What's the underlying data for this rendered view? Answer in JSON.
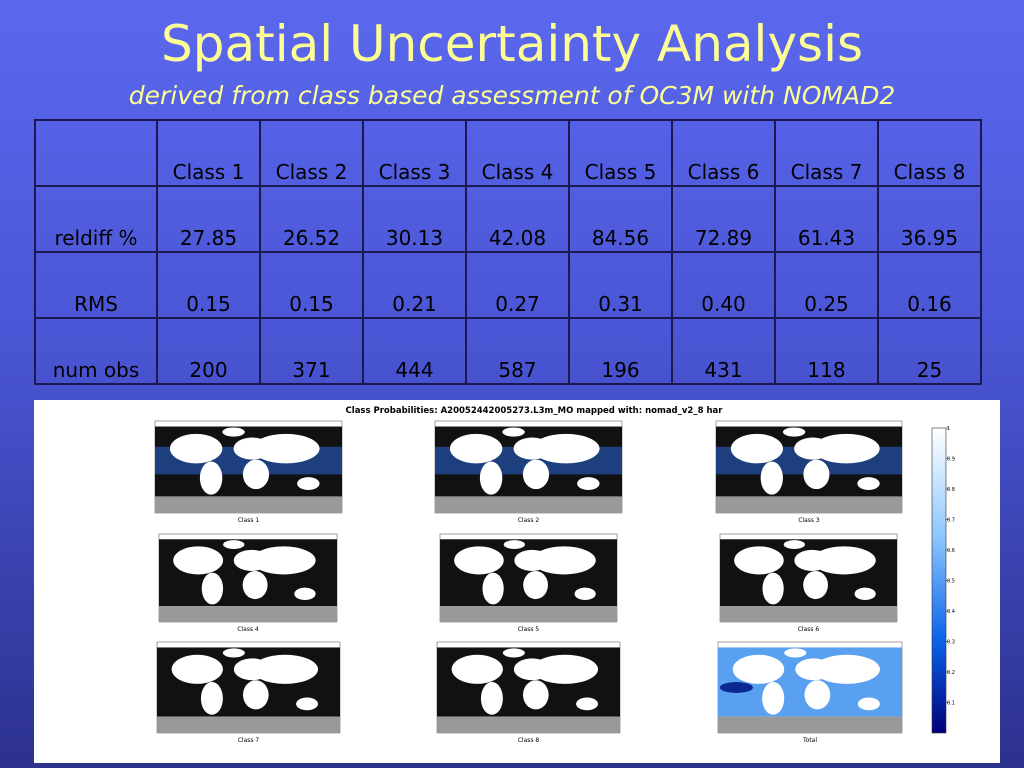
{
  "header": {
    "title": "Spatial Uncertainty Analysis",
    "subtitle": "derived from class based assessment of OC3M with NOMAD2"
  },
  "table": {
    "columns": [
      "Class 1",
      "Class 2",
      "Class 3",
      "Class 4",
      "Class 5",
      "Class 6",
      "Class 7",
      "Class 8"
    ],
    "rows": [
      {
        "label": "reldiff %",
        "cells": [
          "27.85",
          "26.52",
          "30.13",
          "42.08",
          "84.56",
          "72.89",
          "61.43",
          "36.95"
        ]
      },
      {
        "label": "RMS",
        "cells": [
          "0.15",
          "0.15",
          "0.21",
          "0.27",
          "0.31",
          "0.40",
          "0.25",
          "0.16"
        ]
      },
      {
        "label": "num obs",
        "cells": [
          "200",
          "371",
          "444",
          "587",
          "196",
          "431",
          "118",
          "25"
        ]
      }
    ]
  },
  "figure": {
    "title": "Class Probabilities: A20052442005273.L3m_MO mapped with: nomad_v2_8 har",
    "panels": [
      "Class 1",
      "Class 2",
      "Class 3",
      "Class 4",
      "Class 5",
      "Class 6",
      "Class 7",
      "Class 8",
      "Total"
    ],
    "colorbar_ticks": [
      "1",
      "0.9",
      "0.8",
      "0.7",
      "0.6",
      "0.5",
      "0.4",
      "0.3",
      "0.2",
      "0.1"
    ]
  }
}
